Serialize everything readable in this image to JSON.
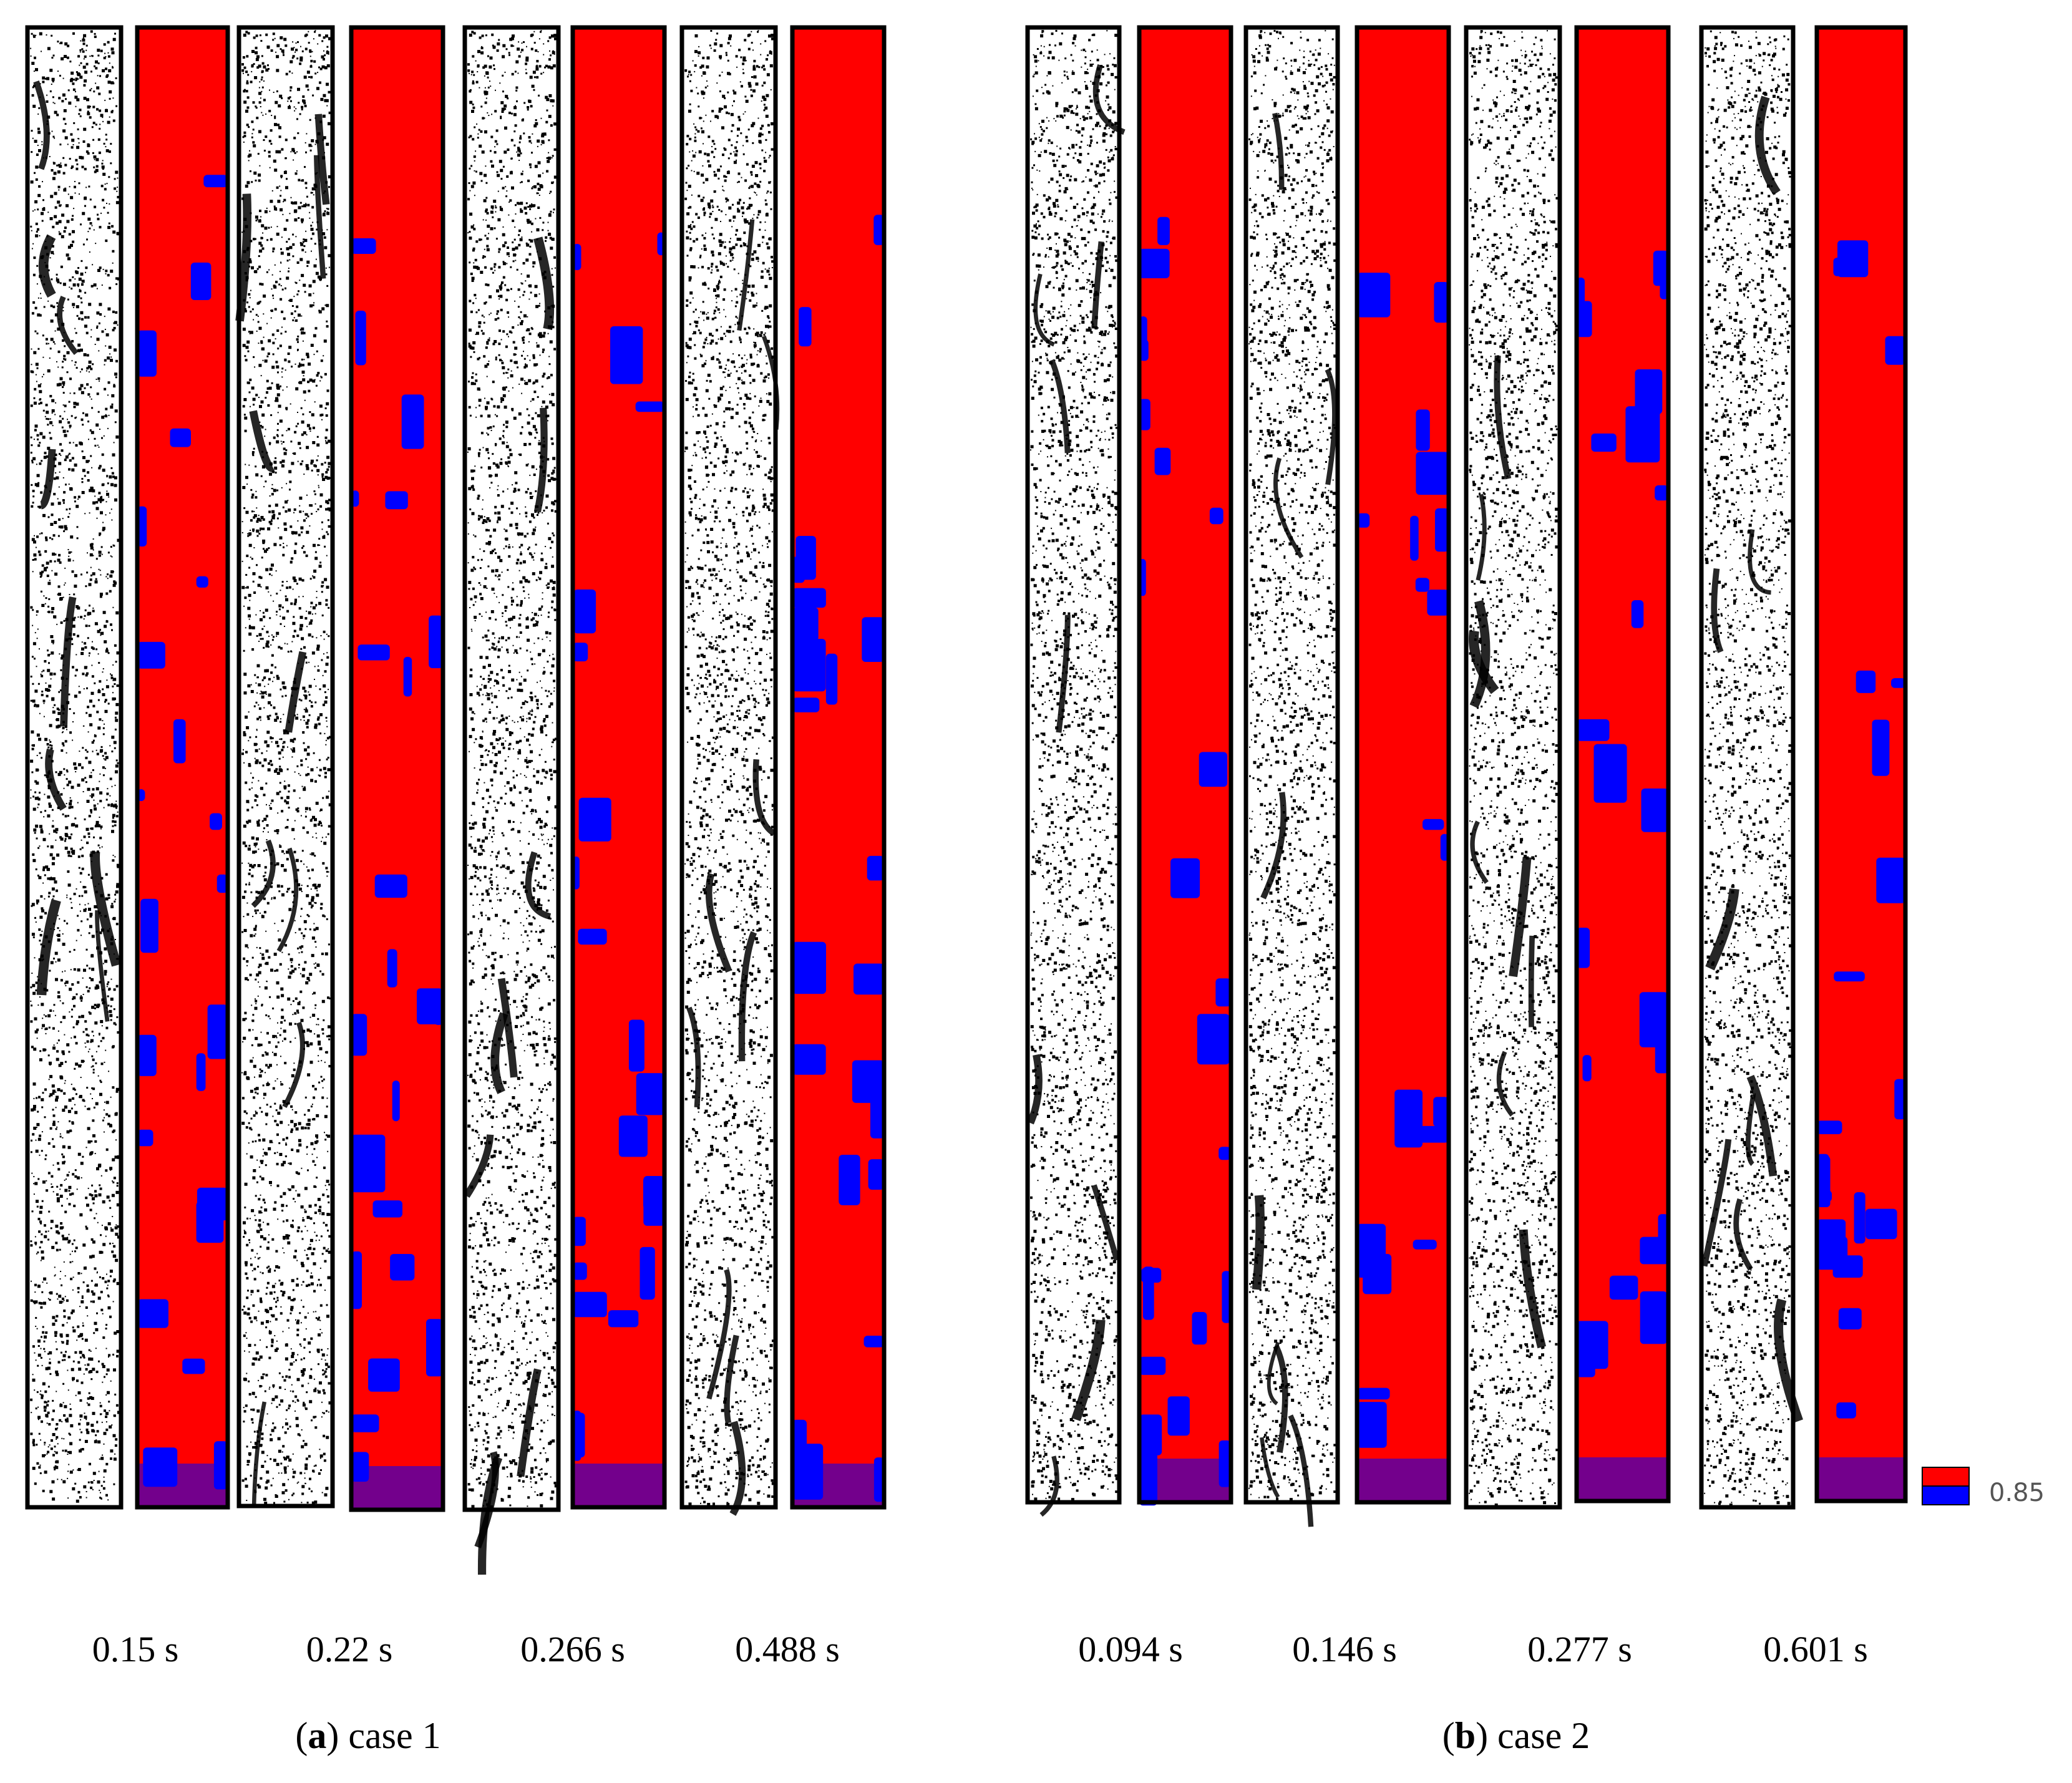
{
  "panels": [
    {
      "caption_letter": "a",
      "caption_text": "case 1",
      "time_labels": [
        "0.15 s",
        "0.22 s",
        "0.266 s",
        "0.488 s"
      ]
    },
    {
      "caption_letter": "b",
      "caption_text": "case 2",
      "time_labels": [
        "0.094 s",
        "0.146 s",
        "0.277 s",
        "0.601 s"
      ]
    }
  ],
  "legend": {
    "value": "0.85",
    "colors": [
      "#ff0000",
      "#0000ff"
    ]
  },
  "colors": {
    "high": "#ff0000",
    "low": "#0000ff",
    "particle": "#000000",
    "frame": "#000000",
    "background": "#ffffff"
  }
}
